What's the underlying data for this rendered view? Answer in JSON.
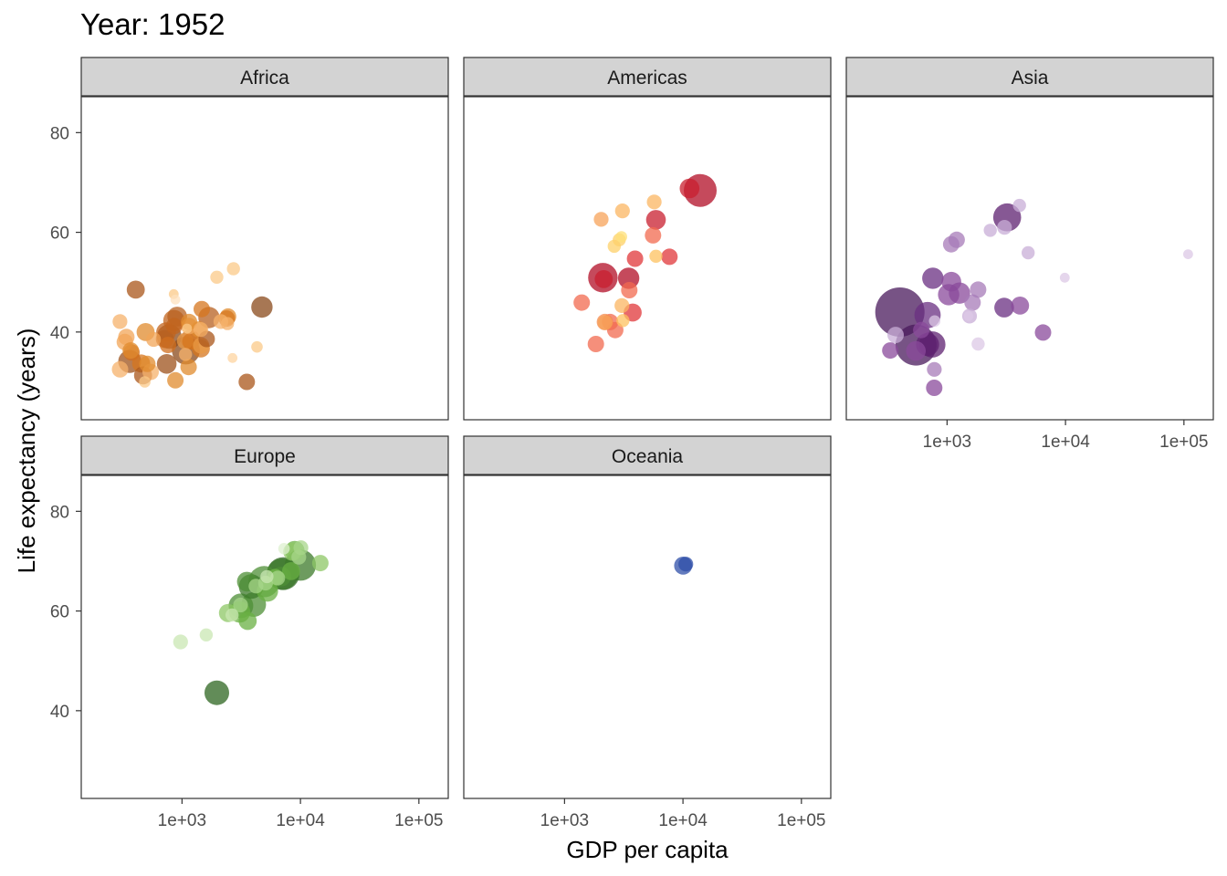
{
  "chart_data": {
    "type": "scatter",
    "title": "Year: 1952",
    "xlabel": "GDP per capita",
    "ylabel": "Life expectancy (years)",
    "x_scale": "log10",
    "x_ticks": [
      "1e+03",
      "1e+04",
      "1e+05"
    ],
    "x_tick_values": [
      1000,
      10000,
      100000
    ],
    "y_ticks": [
      "40",
      "60",
      "80"
    ],
    "y_tick_values": [
      40,
      60,
      80
    ],
    "xlim": [
      141,
      177000
    ],
    "ylim": [
      22.4,
      87.2
    ],
    "grid": false,
    "legend": "none",
    "panels": [
      {
        "name": "Africa",
        "points": [
          {
            "x": 2449,
            "y": 43.1,
            "size": 1.0,
            "color": "#E08B2E"
          },
          {
            "x": 3521,
            "y": 30.0,
            "size": 1.0,
            "color": "#A9561A"
          },
          {
            "x": 1063,
            "y": 38.2,
            "size": 1.0,
            "color": "#E89A45"
          },
          {
            "x": 851,
            "y": 47.6,
            "size": 0.6,
            "color": "#FBC988"
          },
          {
            "x": 543,
            "y": 32.0,
            "size": 1.0,
            "color": "#F6B26B"
          },
          {
            "x": 339,
            "y": 39.0,
            "size": 1.0,
            "color": "#F2A658"
          },
          {
            "x": 1173,
            "y": 38.5,
            "size": 1.2,
            "color": "#B76020"
          },
          {
            "x": 1071,
            "y": 35.5,
            "size": 0.8,
            "color": "#F6B26B"
          },
          {
            "x": 1179,
            "y": 38.1,
            "size": 1.0,
            "color": "#D6761E"
          },
          {
            "x": 1103,
            "y": 40.7,
            "size": 0.6,
            "color": "#FBC988"
          },
          {
            "x": 781,
            "y": 39.1,
            "size": 1.5,
            "color": "#8A4A1B"
          },
          {
            "x": 2126,
            "y": 42.1,
            "size": 0.9,
            "color": "#F6B26B"
          },
          {
            "x": 1389,
            "y": 40.5,
            "size": 1.0,
            "color": "#E08B2E"
          },
          {
            "x": 2670,
            "y": 34.8,
            "size": 0.6,
            "color": "#FDD4A0"
          },
          {
            "x": 375,
            "y": 35.9,
            "size": 1.0,
            "color": "#D06F1F"
          },
          {
            "x": 329,
            "y": 38.0,
            "size": 1.0,
            "color": "#F2A658"
          },
          {
            "x": 362,
            "y": 34.1,
            "size": 1.4,
            "color": "#9E521B"
          },
          {
            "x": 4293,
            "y": 37.0,
            "size": 0.7,
            "color": "#FBC988"
          },
          {
            "x": 485,
            "y": 30.0,
            "size": 0.7,
            "color": "#FBC988"
          },
          {
            "x": 911,
            "y": 43.1,
            "size": 1.2,
            "color": "#B76020"
          },
          {
            "x": 510,
            "y": 33.6,
            "size": 1.0,
            "color": "#E08B2E"
          },
          {
            "x": 300,
            "y": 32.5,
            "size": 1.0,
            "color": "#F6B26B"
          },
          {
            "x": 854,
            "y": 42.3,
            "size": 1.3,
            "color": "#C1641D"
          },
          {
            "x": 299,
            "y": 42.1,
            "size": 0.9,
            "color": "#F6B26B"
          },
          {
            "x": 575,
            "y": 38.5,
            "size": 0.9,
            "color": "#F2A658"
          },
          {
            "x": 2388,
            "y": 42.7,
            "size": 1.0,
            "color": "#D6761E"
          },
          {
            "x": 1443,
            "y": 36.7,
            "size": 1.1,
            "color": "#D6761E"
          },
          {
            "x": 369,
            "y": 36.3,
            "size": 1.0,
            "color": "#E08B2E"
          },
          {
            "x": 452,
            "y": 33.7,
            "size": 1.1,
            "color": "#D6761E"
          },
          {
            "x": 743,
            "y": 33.6,
            "size": 1.2,
            "color": "#9E521B"
          },
          {
            "x": 1443,
            "y": 40.5,
            "size": 0.9,
            "color": "#F6B26B"
          },
          {
            "x": 1967,
            "y": 50.99,
            "size": 0.8,
            "color": "#FBC988"
          },
          {
            "x": 1688,
            "y": 42.9,
            "size": 1.3,
            "color": "#B76020"
          },
          {
            "x": 469,
            "y": 31.3,
            "size": 1.1,
            "color": "#A9561A"
          },
          {
            "x": 2423,
            "y": 41.7,
            "size": 0.8,
            "color": "#F6B26B"
          },
          {
            "x": 761,
            "y": 37.4,
            "size": 1.0,
            "color": "#D06F1F"
          },
          {
            "x": 1077,
            "y": 36.3,
            "size": 1.7,
            "color": "#8A4A1B"
          },
          {
            "x": 2719,
            "y": 52.7,
            "size": 0.8,
            "color": "#FBC988"
          },
          {
            "x": 493,
            "y": 40.0,
            "size": 1.1,
            "color": "#E08B2E"
          },
          {
            "x": 879,
            "y": 46.5,
            "size": 0.6,
            "color": "#FDE2BF"
          },
          {
            "x": 1450,
            "y": 37.3,
            "size": 1.0,
            "color": "#E89A45"
          },
          {
            "x": 879,
            "y": 30.3,
            "size": 1.0,
            "color": "#E08B2E"
          },
          {
            "x": 1136,
            "y": 32.98,
            "size": 1.0,
            "color": "#E08B2E"
          },
          {
            "x": 4725,
            "y": 45.0,
            "size": 1.3,
            "color": "#8A4A1B"
          },
          {
            "x": 1616,
            "y": 38.6,
            "size": 1.0,
            "color": "#A9561A"
          },
          {
            "x": 1148,
            "y": 41.2,
            "size": 1.0,
            "color": "#F2A658"
          },
          {
            "x": 717,
            "y": 38.6,
            "size": 1.1,
            "color": "#B76020"
          },
          {
            "x": 859,
            "y": 41.2,
            "size": 1.0,
            "color": "#C1641D"
          },
          {
            "x": 1468,
            "y": 44.6,
            "size": 1.0,
            "color": "#D6761E"
          },
          {
            "x": 734,
            "y": 39.98,
            "size": 1.2,
            "color": "#C1641D"
          },
          {
            "x": 1147,
            "y": 42.0,
            "size": 1.0,
            "color": "#E08B2E"
          },
          {
            "x": 407,
            "y": 48.5,
            "size": 1.1,
            "color": "#A9561A"
          }
        ]
      },
      {
        "name": "Americas",
        "points": [
          {
            "x": 5911,
            "y": 62.5,
            "size": 1.2,
            "color": "#C81F2F"
          },
          {
            "x": 2677,
            "y": 40.4,
            "size": 1.0,
            "color": "#F26A4F"
          },
          {
            "x": 2109,
            "y": 50.9,
            "size": 1.8,
            "color": "#B10E26"
          },
          {
            "x": 11367,
            "y": 68.8,
            "size": 1.2,
            "color": "#C81F2F"
          },
          {
            "x": 3940,
            "y": 54.7,
            "size": 1.0,
            "color": "#E0373A"
          },
          {
            "x": 2144,
            "y": 50.6,
            "size": 1.1,
            "color": "#C81F2F"
          },
          {
            "x": 2627,
            "y": 57.2,
            "size": 0.8,
            "color": "#FDD06A"
          },
          {
            "x": 5587,
            "y": 59.4,
            "size": 1.0,
            "color": "#F26A4F"
          },
          {
            "x": 1398,
            "y": 45.9,
            "size": 1.0,
            "color": "#F26A4F"
          },
          {
            "x": 3522,
            "y": 48.4,
            "size": 1.0,
            "color": "#F26A4F"
          },
          {
            "x": 3048,
            "y": 45.3,
            "size": 0.9,
            "color": "#FBB561"
          },
          {
            "x": 2428,
            "y": 42.0,
            "size": 1.0,
            "color": "#F26A4F"
          },
          {
            "x": 2194,
            "y": 42.0,
            "size": 1.0,
            "color": "#F48A4D"
          },
          {
            "x": 1840,
            "y": 37.6,
            "size": 1.0,
            "color": "#F26A4F"
          },
          {
            "x": 2195,
            "y": 41.9,
            "size": 0.9,
            "color": "#F7A35A"
          },
          {
            "x": 2899,
            "y": 58.5,
            "size": 0.8,
            "color": "#FDD06A"
          },
          {
            "x": 3478,
            "y": 50.8,
            "size": 1.3,
            "color": "#B10E26"
          },
          {
            "x": 3112,
            "y": 42.3,
            "size": 0.8,
            "color": "#FDC25F"
          },
          {
            "x": 5911,
            "y": 55.2,
            "size": 0.8,
            "color": "#FDC25F"
          },
          {
            "x": 2040,
            "y": 62.6,
            "size": 0.9,
            "color": "#F7A35A"
          },
          {
            "x": 3759,
            "y": 43.9,
            "size": 1.1,
            "color": "#E0373A"
          },
          {
            "x": 3082,
            "y": 64.3,
            "size": 0.9,
            "color": "#FBB561"
          },
          {
            "x": 3023,
            "y": 59.1,
            "size": 0.7,
            "color": "#FDE07A"
          },
          {
            "x": 13990,
            "y": 68.4,
            "size": 2.0,
            "color": "#B10E26"
          },
          {
            "x": 5716,
            "y": 66.1,
            "size": 0.9,
            "color": "#FBB561"
          },
          {
            "x": 7690,
            "y": 55.1,
            "size": 1.0,
            "color": "#E0373A"
          }
        ]
      },
      {
        "name": "Asia",
        "points": [
          {
            "x": 779,
            "y": 28.8,
            "size": 1.0,
            "color": "#8A4A9B"
          },
          {
            "x": 9867,
            "y": 50.9,
            "size": 0.6,
            "color": "#DCC8E5"
          },
          {
            "x": 684,
            "y": 37.5,
            "size": 1.4,
            "color": "#5E2070"
          },
          {
            "x": 368,
            "y": 39.4,
            "size": 1.0,
            "color": "#C8AED7"
          },
          {
            "x": 400,
            "y": 44.0,
            "size": 3.0,
            "color": "#4A1A5C"
          },
          {
            "x": 3054,
            "y": 61.0,
            "size": 0.9,
            "color": "#C8AED7"
          },
          {
            "x": 547,
            "y": 37.4,
            "size": 2.5,
            "color": "#4A1A5C"
          },
          {
            "x": 750,
            "y": 37.5,
            "size": 1.6,
            "color": "#5E2070"
          },
          {
            "x": 3035,
            "y": 44.9,
            "size": 1.2,
            "color": "#6A2F82"
          },
          {
            "x": 4130,
            "y": 45.3,
            "size": 1.1,
            "color": "#8A4A9B"
          },
          {
            "x": 4087,
            "y": 65.4,
            "size": 0.8,
            "color": "#C8AED7"
          },
          {
            "x": 3217,
            "y": 63.0,
            "size": 1.7,
            "color": "#5E2070"
          },
          {
            "x": 1547,
            "y": 43.2,
            "size": 0.9,
            "color": "#C8AED7"
          },
          {
            "x": 1088,
            "y": 50.1,
            "size": 1.2,
            "color": "#8A4A9B"
          },
          {
            "x": 1031,
            "y": 47.5,
            "size": 1.3,
            "color": "#8A4A9B"
          },
          {
            "x": 108382,
            "y": 55.6,
            "size": 0.6,
            "color": "#DCC8E5"
          },
          {
            "x": 4835,
            "y": 55.9,
            "size": 0.8,
            "color": "#C8AED7"
          },
          {
            "x": 1831,
            "y": 48.5,
            "size": 1.0,
            "color": "#A77BB8"
          },
          {
            "x": 786,
            "y": 42.2,
            "size": 0.7,
            "color": "#DCC8E5"
          },
          {
            "x": 332,
            "y": 36.3,
            "size": 1.0,
            "color": "#8A4A9B"
          },
          {
            "x": 545,
            "y": 36.2,
            "size": 1.2,
            "color": "#8A4A9B"
          },
          {
            "x": 1829,
            "y": 37.6,
            "size": 0.8,
            "color": "#DCC8E5"
          },
          {
            "x": 684,
            "y": 43.4,
            "size": 1.6,
            "color": "#6A2F82"
          },
          {
            "x": 1273,
            "y": 47.8,
            "size": 1.3,
            "color": "#8A4A9B"
          },
          {
            "x": 6460,
            "y": 39.9,
            "size": 1.0,
            "color": "#8A4A9B"
          },
          {
            "x": 2315,
            "y": 60.4,
            "size": 0.8,
            "color": "#C8AED7"
          },
          {
            "x": 1083,
            "y": 57.6,
            "size": 1.0,
            "color": "#A77BB8"
          },
          {
            "x": 1643,
            "y": 45.9,
            "size": 1.0,
            "color": "#A77BB8"
          },
          {
            "x": 1206,
            "y": 58.5,
            "size": 1.0,
            "color": "#A77BB8"
          },
          {
            "x": 758,
            "y": 50.8,
            "size": 1.3,
            "color": "#6A2F82"
          },
          {
            "x": 605,
            "y": 40.4,
            "size": 1.0,
            "color": "#8A4A9B"
          },
          {
            "x": 1516,
            "y": 43.2,
            "size": 0.6,
            "color": "#DCC8E5"
          },
          {
            "x": 781,
            "y": 32.5,
            "size": 0.9,
            "color": "#A77BB8"
          }
        ]
      },
      {
        "name": "Europe",
        "points": [
          {
            "x": 1601,
            "y": 55.2,
            "size": 0.8,
            "color": "#C9E7B3"
          },
          {
            "x": 6137,
            "y": 66.8,
            "size": 1.0,
            "color": "#72B84A"
          },
          {
            "x": 8343,
            "y": 68.0,
            "size": 1.1,
            "color": "#6AB043"
          },
          {
            "x": 973,
            "y": 53.8,
            "size": 0.9,
            "color": "#C9E7B3"
          },
          {
            "x": 2444,
            "y": 59.6,
            "size": 1.1,
            "color": "#8DC765"
          },
          {
            "x": 3119,
            "y": 61.2,
            "size": 0.9,
            "color": "#A7D68A"
          },
          {
            "x": 6876,
            "y": 66.9,
            "size": 1.2,
            "color": "#4E8F36"
          },
          {
            "x": 9692,
            "y": 70.8,
            "size": 0.9,
            "color": "#A7D68A"
          },
          {
            "x": 6424,
            "y": 66.6,
            "size": 0.9,
            "color": "#A7D68A"
          },
          {
            "x": 7030,
            "y": 67.4,
            "size": 1.9,
            "color": "#3C7A2A"
          },
          {
            "x": 7144,
            "y": 67.5,
            "size": 2.0,
            "color": "#2E6620"
          },
          {
            "x": 3531,
            "y": 65.9,
            "size": 1.2,
            "color": "#4E8F36"
          },
          {
            "x": 5264,
            "y": 64.0,
            "size": 1.3,
            "color": "#6AB043"
          },
          {
            "x": 7268,
            "y": 72.5,
            "size": 0.7,
            "color": "#DDF0CF"
          },
          {
            "x": 5211,
            "y": 66.9,
            "size": 0.8,
            "color": "#C9E7B3"
          },
          {
            "x": 4931,
            "y": 65.9,
            "size": 1.9,
            "color": "#4E8F36"
          },
          {
            "x": 2648,
            "y": 59.2,
            "size": 0.8,
            "color": "#C9E7B3"
          },
          {
            "x": 8942,
            "y": 72.1,
            "size": 1.2,
            "color": "#6AB043"
          },
          {
            "x": 10095,
            "y": 72.7,
            "size": 0.9,
            "color": "#A7D68A"
          },
          {
            "x": 4029,
            "y": 61.3,
            "size": 1.5,
            "color": "#4E8F36"
          },
          {
            "x": 3068,
            "y": 59.8,
            "size": 1.3,
            "color": "#6AB043"
          },
          {
            "x": 3144,
            "y": 61.05,
            "size": 1.5,
            "color": "#4E8F36"
          },
          {
            "x": 3582,
            "y": 58.0,
            "size": 1.1,
            "color": "#6AB043"
          },
          {
            "x": 5074,
            "y": 65.6,
            "size": 0.9,
            "color": "#A7D68A"
          },
          {
            "x": 4215,
            "y": 65.0,
            "size": 0.9,
            "color": "#A7D68A"
          },
          {
            "x": 3834,
            "y": 64.9,
            "size": 1.5,
            "color": "#3C7A2A"
          },
          {
            "x": 8527,
            "y": 71.9,
            "size": 1.1,
            "color": "#8DC765"
          },
          {
            "x": 14734,
            "y": 69.6,
            "size": 1.0,
            "color": "#8DC765"
          },
          {
            "x": 1969,
            "y": 43.6,
            "size": 1.5,
            "color": "#2E6620"
          },
          {
            "x": 9980,
            "y": 69.2,
            "size": 1.9,
            "color": "#3C7A2A"
          }
        ]
      },
      {
        "name": "Oceania",
        "points": [
          {
            "x": 10040,
            "y": 69.1,
            "size": 1.1,
            "color": "#2F4FA8"
          },
          {
            "x": 10557,
            "y": 69.4,
            "size": 0.9,
            "color": "#2F4FA8"
          }
        ]
      }
    ]
  }
}
